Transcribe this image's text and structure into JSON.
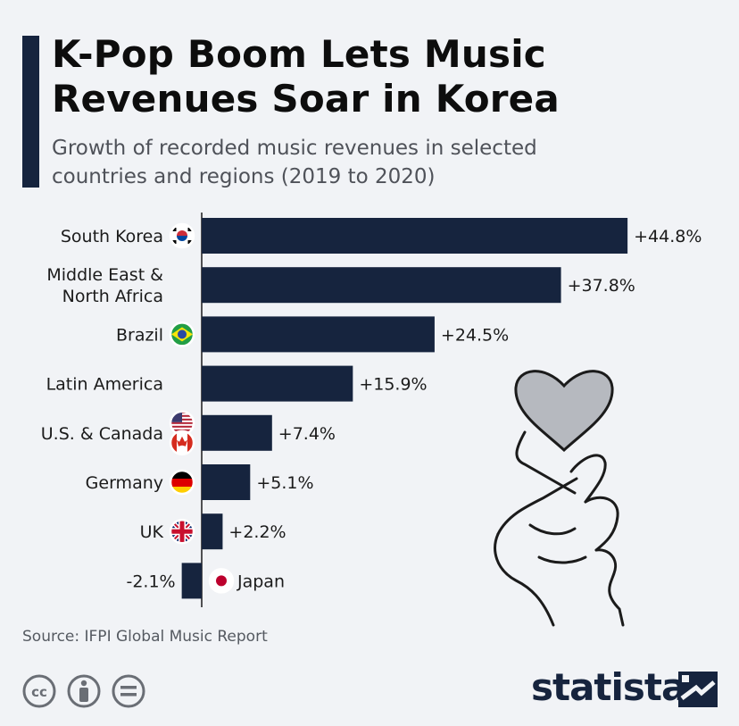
{
  "header": {
    "title_line1": "K-Pop Boom Lets Music",
    "title_line2": "Revenues Soar in Korea",
    "subtitle_line1": "Growth of recorded music revenues in selected",
    "subtitle_line2": "countries and regions (2019 to 2020)"
  },
  "chart_data": {
    "type": "bar",
    "orientation": "horizontal",
    "categories": [
      "South Korea",
      "Middle East & North Africa",
      "Brazil",
      "Latin America",
      "U.S. & Canada",
      "Germany",
      "UK",
      "Japan"
    ],
    "category_lines": [
      [
        "South Korea"
      ],
      [
        "Middle East &",
        "North Africa"
      ],
      [
        "Brazil"
      ],
      [
        "Latin America"
      ],
      [
        "U.S. & Canada"
      ],
      [
        "Germany"
      ],
      [
        "UK"
      ],
      [
        "Japan"
      ]
    ],
    "values": [
      44.8,
      37.8,
      24.5,
      15.9,
      7.4,
      5.1,
      2.2,
      -2.1
    ],
    "value_labels": [
      "+44.8%",
      "+37.8%",
      "+24.5%",
      "+15.9%",
      "+7.4%",
      "+5.1%",
      "+2.2%",
      "-2.1%"
    ],
    "flags": [
      "south-korea-flag-icon",
      "",
      "brazil-flag-icon",
      "",
      "us-canada-flags-icon",
      "germany-flag-icon",
      "uk-flag-icon",
      "japan-flag-icon"
    ],
    "bar_color": "#16243e",
    "grid": false,
    "legend": "none"
  },
  "footer": {
    "source": "Source: IFPI Global Music Report",
    "brand": "statista",
    "license_icons": [
      "cc-icon",
      "attribution-icon",
      "no-derivatives-icon"
    ]
  },
  "decoration": {
    "icon": "finger-heart-hand-icon",
    "heart_color": "#b6b9bf"
  }
}
